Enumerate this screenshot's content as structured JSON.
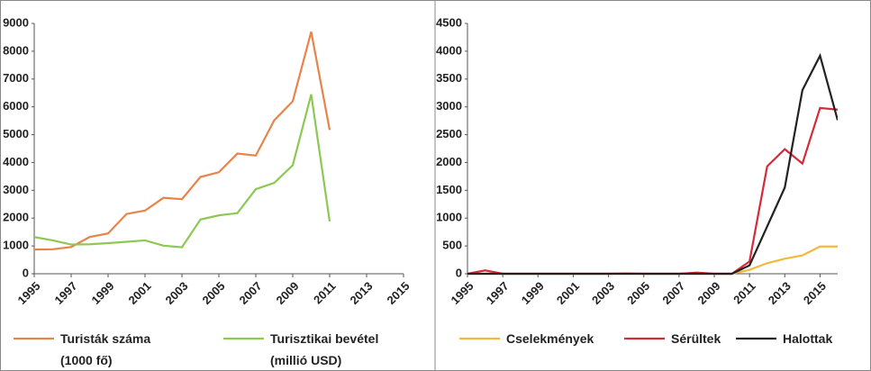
{
  "chart_data": [
    {
      "type": "line",
      "xlim": [
        1995,
        2015
      ],
      "xticks": [
        1995,
        1997,
        1999,
        2001,
        2003,
        2005,
        2007,
        2009,
        2011,
        2013,
        2015
      ],
      "ylim": [
        0,
        9000
      ],
      "yticks": [
        0,
        1000,
        2000,
        3000,
        4000,
        5000,
        6000,
        7000,
        8000,
        9000
      ],
      "x": [
        1995,
        1996,
        1997,
        1998,
        1999,
        2000,
        2001,
        2002,
        2003,
        2004,
        2005,
        2006,
        2007,
        2008,
        2009,
        2010,
        2011
      ],
      "series": [
        {
          "name": "Turisták száma\n(1000 fő)",
          "color": "#e8834a",
          "values": [
            870,
            880,
            960,
            1320,
            1450,
            2150,
            2270,
            2730,
            2680,
            3480,
            3650,
            4320,
            4250,
            5520,
            6200,
            8700,
            5170
          ]
        },
        {
          "name": "Turisztikai bevétel\n(millió USD)",
          "color": "#8dc855",
          "values": [
            1320,
            1200,
            1050,
            1060,
            1100,
            1150,
            1200,
            1010,
            950,
            1950,
            2100,
            2180,
            3040,
            3270,
            3900,
            6450,
            1880
          ]
        }
      ]
    },
    {
      "type": "line",
      "xlim": [
        1995,
        2016
      ],
      "xticks": [
        1995,
        1997,
        1999,
        2001,
        2003,
        2005,
        2007,
        2009,
        2011,
        2013,
        2015
      ],
      "ylim": [
        0,
        4500
      ],
      "yticks": [
        0,
        500,
        1000,
        1500,
        2000,
        2500,
        3000,
        3500,
        4000,
        4500
      ],
      "x": [
        1995,
        1996,
        1997,
        1998,
        1999,
        2000,
        2001,
        2002,
        2003,
        2004,
        2005,
        2006,
        2007,
        2008,
        2009,
        2010,
        2011,
        2012,
        2013,
        2014,
        2015,
        2016
      ],
      "series": [
        {
          "name": "Cselekmények",
          "color": "#f5b83d",
          "values": [
            0,
            0,
            0,
            0,
            0,
            0,
            0,
            0,
            0,
            0,
            0,
            0,
            0,
            0,
            0,
            0,
            70,
            190,
            270,
            330,
            490,
            490
          ]
        },
        {
          "name": "Sérültek",
          "color": "#d42a3a",
          "values": [
            0,
            60,
            0,
            0,
            0,
            0,
            0,
            0,
            0,
            5,
            0,
            0,
            0,
            20,
            0,
            0,
            220,
            1930,
            2240,
            1980,
            2980,
            2950
          ]
        },
        {
          "name": "Halottak",
          "color": "#222222",
          "values": [
            0,
            0,
            0,
            0,
            0,
            0,
            0,
            0,
            0,
            0,
            0,
            0,
            0,
            0,
            0,
            0,
            150,
            850,
            1550,
            3300,
            3920,
            2760
          ]
        }
      ]
    }
  ]
}
